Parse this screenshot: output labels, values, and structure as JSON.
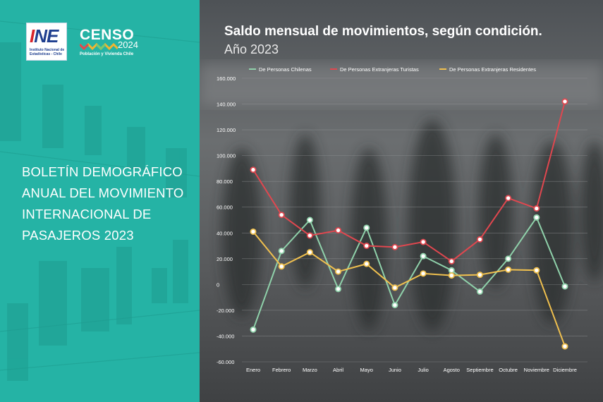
{
  "logos": {
    "ine_mark": "INE",
    "ine_text": "Instituto Nacional de Estadísticas - Chile",
    "censo_word": "CENSO",
    "censo_year": "2024",
    "censo_tagline": "Población y Vivienda Chile"
  },
  "bulletin": {
    "title": "BOLETÍN DEMOGRÁFICO ANUAL DEL MOVIMIENTO INTERNACIONAL DE PASAJEROS 2023"
  },
  "chart_data": {
    "type": "line",
    "title": "Saldo mensual de movimientos, según condición.",
    "subtitle": "Año 2023",
    "categories": [
      "Enero",
      "Febrero",
      "Marzo",
      "Abril",
      "Mayo",
      "Junio",
      "Julio",
      "Agosto",
      "Septiembre",
      "Octubre",
      "Noviembre",
      "Diciembre"
    ],
    "series": [
      {
        "name": "De Personas Chilenas",
        "color": "#8fd1aa",
        "values": [
          -35000,
          26000,
          50000,
          -3500,
          44000,
          -16000,
          22000,
          11000,
          -5500,
          20000,
          52000,
          -1500
        ]
      },
      {
        "name": "De Personas Extranjeras Turistas",
        "color": "#e0474f",
        "values": [
          89000,
          54000,
          38000,
          42000,
          30000,
          29000,
          33000,
          18000,
          35000,
          67000,
          59000,
          142000
        ]
      },
      {
        "name": "De Personas Extranjeras Residentes",
        "color": "#f0c04e",
        "values": [
          41000,
          14000,
          25000,
          10000,
          16000,
          -2500,
          8500,
          7000,
          7500,
          11500,
          11000,
          -48000
        ]
      }
    ],
    "yticks": [
      "160.000",
      "140.000",
      "120.000",
      "100.000",
      "80.000",
      "60.000",
      "40.000",
      "20.000",
      "0",
      "-20.000",
      "-40.000",
      "-60.000"
    ],
    "ylim": [
      -60000,
      160000
    ],
    "grid": true,
    "legend": "top"
  }
}
